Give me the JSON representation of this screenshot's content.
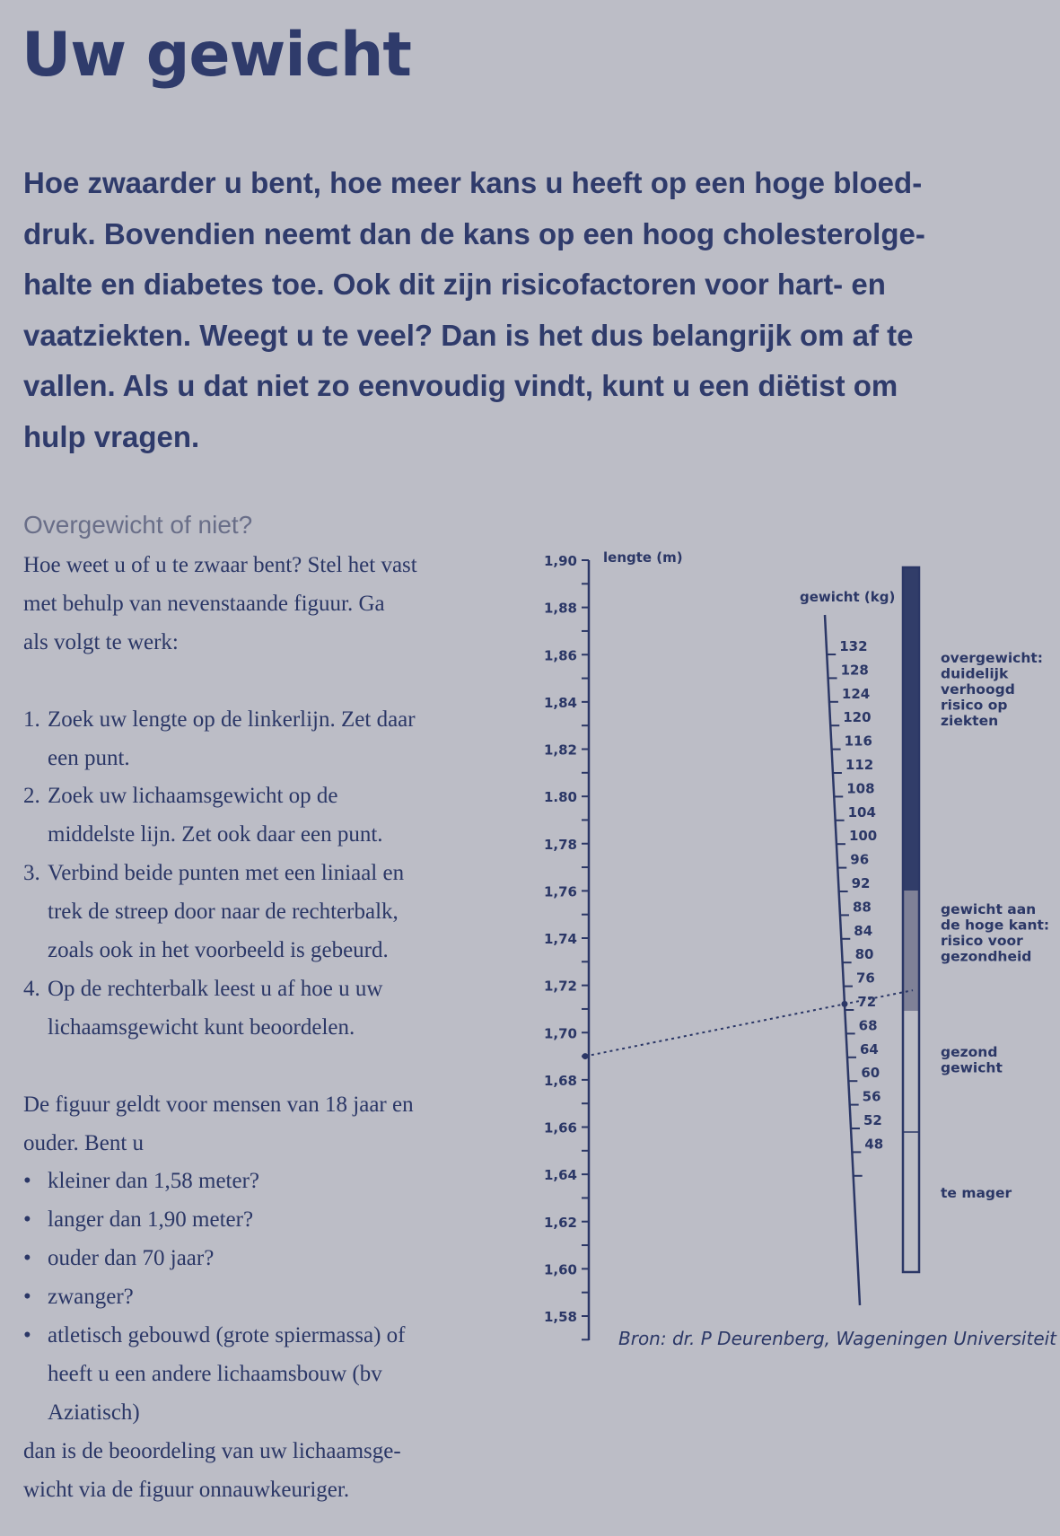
{
  "title": "Uw gewicht",
  "intro_lines": [
    "Hoe zwaarder u bent, hoe meer kans u heeft op een hoge bloed-",
    "druk. Bovendien neemt dan de kans op een hoog cholesterolge-",
    "halte en diabetes toe. Ook dit zijn risicofactoren voor hart- en",
    "vaatziekten. Weegt u te veel? Dan is het dus belangrijk om af te",
    "vallen. Als u dat niet zo eenvoudig vindt, kunt u een diëtist om",
    "hulp vragen."
  ],
  "subheading": "Overgewicht of niet?",
  "instructions_intro": [
    "Hoe weet u of u te zwaar bent? Stel het vast",
    "met behulp van nevenstaande figuur. Ga",
    "als volgt te werk:"
  ],
  "steps": [
    {
      "num": "1.",
      "lines": [
        "Zoek uw lengte op de linkerlijn. Zet daar",
        "een punt."
      ]
    },
    {
      "num": "2.",
      "lines": [
        "Zoek uw lichaamsgewicht op de",
        "middelste lijn. Zet ook daar een punt."
      ]
    },
    {
      "num": "3.",
      "lines": [
        "Verbind beide punten met een liniaal en",
        "trek de streep door naar de rechterbalk,",
        "zoals ook in het voorbeeld is gebeurd."
      ]
    },
    {
      "num": "4.",
      "lines": [
        "Op de rechterbalk leest u af hoe u uw",
        "lichaamsgewicht kunt beoordelen."
      ]
    }
  ],
  "note_intro": [
    "De figuur geldt voor mensen van 18 jaar en",
    "ouder. Bent u"
  ],
  "bullets": [
    {
      "lines": [
        "kleiner dan 1,58 meter?"
      ]
    },
    {
      "lines": [
        "langer dan 1,90 meter?"
      ]
    },
    {
      "lines": [
        "ouder dan 70 jaar?"
      ]
    },
    {
      "lines": [
        "zwanger?"
      ]
    },
    {
      "lines": [
        "atletisch gebouwd (grote spiermassa) of",
        "heeft u een andere lichaamsbouw (bv",
        "Aziatisch)"
      ]
    }
  ],
  "note_outro": [
    "dan is de beoordeling van uw lichaamsge-",
    "wicht via de figuur onnauwkeuriger."
  ],
  "source": "Bron: dr. P Deurenberg, Wageningen Universiteit",
  "colors": {
    "background": "#bcbdc6",
    "text": "#2e3a68",
    "overweight": "#313d69",
    "high_side": "#7f8197",
    "healthy": "#bcbdc6",
    "subheading": "#696e88"
  },
  "chart_data": {
    "type": "nomogram",
    "height_axis": {
      "label": "lengte (m)",
      "range": [
        1.58,
        1.9
      ],
      "ticks": [
        "1,90",
        "1,88",
        "1,86",
        "1,84",
        "1,82",
        "1.80",
        "1,78",
        "1,76",
        "1,74",
        "1,72",
        "1,70",
        "1,68",
        "1,66",
        "1,64",
        "1,62",
        "1,60",
        "1,58"
      ]
    },
    "weight_axis": {
      "label": "gewicht (kg)",
      "ticks": [
        "132",
        "128",
        "124",
        "120",
        "116",
        "112",
        "108",
        "104",
        "100",
        "96",
        "92",
        "88",
        "84",
        "80",
        "76",
        "72",
        "68",
        "64",
        "60",
        "56",
        "52",
        "48"
      ]
    },
    "categories": [
      {
        "label": "overgewicht: duidelijk verhoogd risico op ziekten",
        "lines": [
          "overgewicht:",
          "duidelijk",
          "verhoogd",
          "risico op",
          "ziekten"
        ]
      },
      {
        "label": "gewicht aan de hoge kant: risico voor gezondheid",
        "lines": [
          "gewicht aan",
          "de hoge kant:",
          "risico voor",
          "gezondheid"
        ]
      },
      {
        "label": "gezond gewicht",
        "lines": [
          "gezond",
          "gewicht"
        ]
      },
      {
        "label": "te mager",
        "lines": [
          "te mager"
        ]
      }
    ],
    "example": {
      "height_m": 1.69,
      "weight_kg": 73
    }
  }
}
